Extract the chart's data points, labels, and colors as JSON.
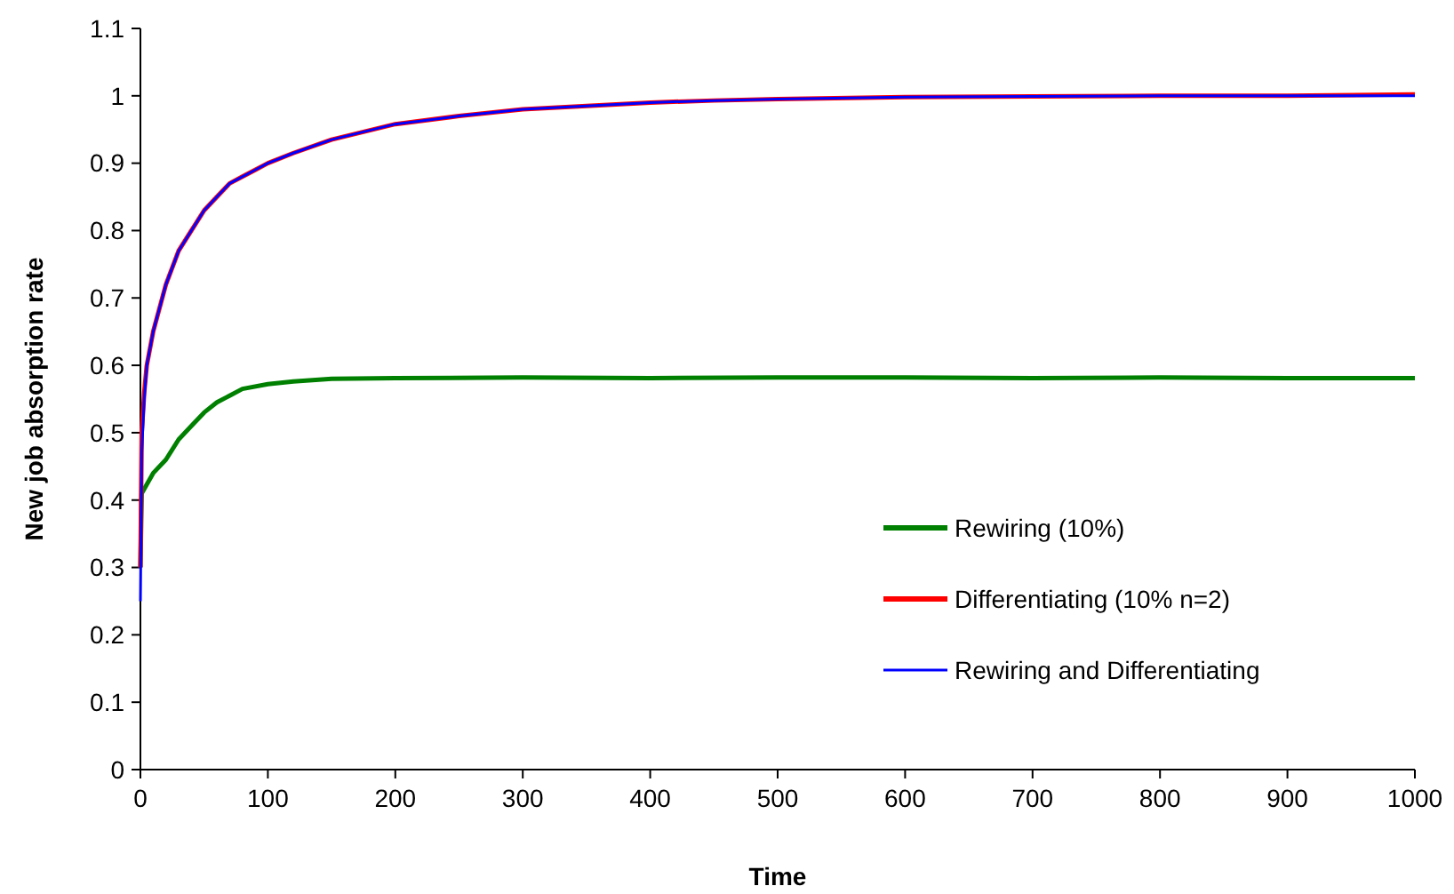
{
  "chart_data": {
    "type": "line",
    "xlabel": "Time",
    "ylabel": "New job absorption rate",
    "xlim": [
      0,
      1000
    ],
    "xticks": [
      0,
      100,
      200,
      300,
      400,
      500,
      600,
      700,
      800,
      900,
      1000
    ],
    "ylim": [
      0,
      1.1
    ],
    "yticks": [
      0,
      0.1,
      0.2,
      0.3,
      0.4,
      0.5,
      0.6,
      0.7,
      0.8,
      0.9,
      1,
      1.1
    ],
    "grid": false,
    "legend": "right",
    "line_style": "solid",
    "series": [
      {
        "name": "Rewiring (10%)",
        "color": "#008000",
        "x": [
          0,
          1,
          10,
          20,
          30,
          40,
          50,
          60,
          70,
          80,
          100,
          120,
          150,
          200,
          300,
          400,
          500,
          600,
          700,
          800,
          900,
          1000
        ],
        "values": [
          0.3,
          0.41,
          0.44,
          0.46,
          0.49,
          0.51,
          0.53,
          0.545,
          0.555,
          0.565,
          0.572,
          0.576,
          0.58,
          0.581,
          0.582,
          0.581,
          0.582,
          0.582,
          0.581,
          0.582,
          0.581,
          0.581
        ]
      },
      {
        "name": "Differentiating (10% n=2)",
        "color": "#ff0000",
        "x": [
          0,
          1,
          3,
          5,
          10,
          20,
          30,
          40,
          50,
          60,
          70,
          80,
          90,
          100,
          120,
          150,
          200,
          250,
          300,
          350,
          400,
          450,
          500,
          600,
          700,
          800,
          900,
          1000
        ],
        "values": [
          0.3,
          0.5,
          0.56,
          0.6,
          0.65,
          0.72,
          0.77,
          0.8,
          0.83,
          0.85,
          0.87,
          0.88,
          0.89,
          0.9,
          0.915,
          0.935,
          0.958,
          0.97,
          0.98,
          0.985,
          0.99,
          0.993,
          0.995,
          0.998,
          0.999,
          1,
          1,
          1.002
        ]
      },
      {
        "name": "Rewiring and Differentiating",
        "color": "#0000ff",
        "x": [
          0,
          1,
          3,
          5,
          10,
          20,
          30,
          40,
          50,
          60,
          70,
          80,
          90,
          100,
          120,
          150,
          200,
          250,
          300,
          350,
          400,
          450,
          500,
          600,
          700,
          800,
          900,
          1000
        ],
        "values": [
          0.25,
          0.47,
          0.55,
          0.6,
          0.65,
          0.72,
          0.77,
          0.8,
          0.83,
          0.85,
          0.87,
          0.88,
          0.89,
          0.9,
          0.915,
          0.935,
          0.958,
          0.97,
          0.98,
          0.985,
          0.99,
          0.993,
          0.995,
          0.998,
          0.999,
          1,
          1,
          1
        ]
      }
    ]
  }
}
